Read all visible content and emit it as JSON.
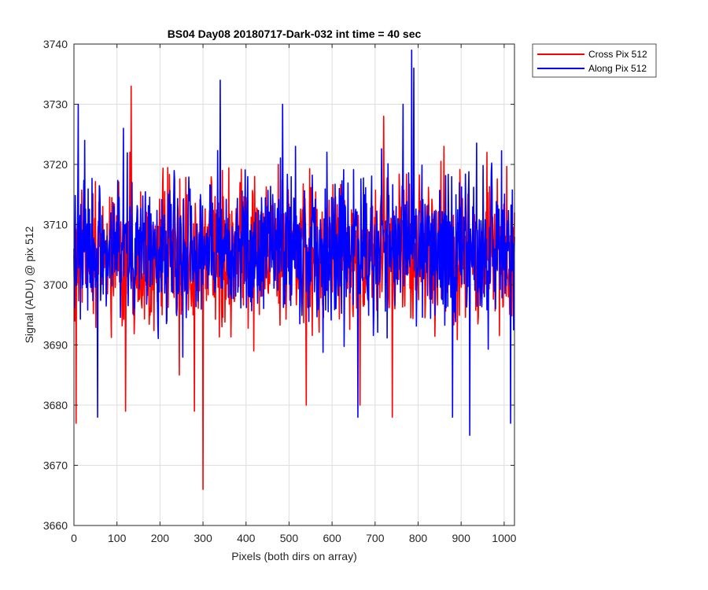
{
  "chart_data": {
    "type": "line",
    "title": "BS04 Day08 20180717-Dark-032 int time = 40 sec",
    "xlabel": "Pixels (both dirs on array)",
    "ylabel": "Signal (ADU) @ pix 512",
    "xlim": [
      0,
      1024
    ],
    "ylim": [
      3660,
      3740
    ],
    "xticks": [
      0,
      100,
      200,
      300,
      400,
      500,
      600,
      700,
      800,
      900,
      1000
    ],
    "yticks": [
      3660,
      3670,
      3680,
      3690,
      3700,
      3710,
      3720,
      3730,
      3740
    ],
    "grid": true,
    "legend_position": "outside-top-right",
    "series": [
      {
        "name": "Cross Pix 512",
        "color": "#ff0000",
        "mean": 3705,
        "spread": 6,
        "min": 3666,
        "max": 3733,
        "points": [
          [
            0,
            3705
          ],
          [
            2,
            3694
          ],
          [
            5,
            3677
          ],
          [
            130,
            3722
          ],
          [
            133,
            3733
          ],
          [
            120,
            3679
          ],
          [
            245,
            3685
          ],
          [
            280,
            3679
          ],
          [
            300,
            3666
          ],
          [
            420,
            3718
          ],
          [
            475,
            3720
          ],
          [
            540,
            3680
          ],
          [
            665,
            3680
          ],
          [
            720,
            3728
          ],
          [
            740,
            3678
          ],
          [
            860,
            3723
          ],
          [
            960,
            3722
          ],
          [
            1010,
            3698
          ],
          [
            1024,
            3712
          ]
        ]
      },
      {
        "name": "Along Pix 512",
        "color": "#0000ff",
        "mean": 3706,
        "spread": 6,
        "min": 3675,
        "max": 3739,
        "points": [
          [
            0,
            3706
          ],
          [
            10,
            3730
          ],
          [
            25,
            3724
          ],
          [
            55,
            3678
          ],
          [
            115,
            3726
          ],
          [
            135,
            3717
          ],
          [
            340,
            3734
          ],
          [
            485,
            3730
          ],
          [
            515,
            3723
          ],
          [
            660,
            3678
          ],
          [
            765,
            3730
          ],
          [
            785,
            3739
          ],
          [
            790,
            3736
          ],
          [
            880,
            3678
          ],
          [
            920,
            3675
          ],
          [
            1015,
            3677
          ],
          [
            1024,
            3708
          ]
        ]
      }
    ]
  }
}
